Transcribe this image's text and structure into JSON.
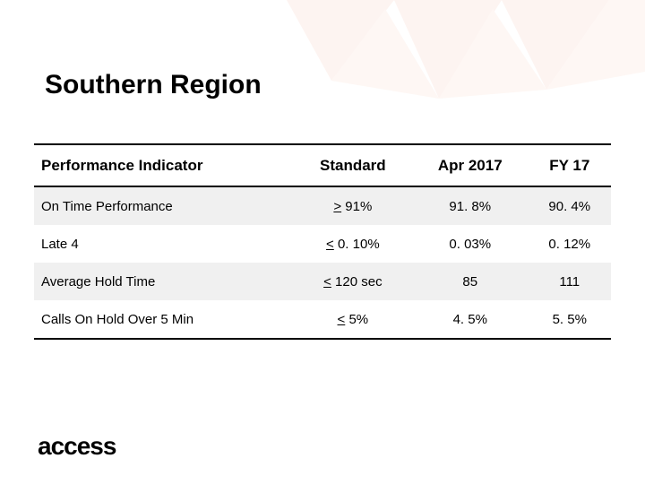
{
  "title": "Southern Region",
  "logo_text": "access",
  "background": {
    "triangle_color": "#f4a98f",
    "opacity": 0.12
  },
  "table": {
    "header_border_color": "#000000",
    "shade_color": "#f0f0f0",
    "columns": [
      "Performance Indicator",
      "Standard",
      "Apr 2017",
      "FY 17"
    ],
    "rows": [
      {
        "indicator": "On Time Performance",
        "standard_prefix": ">",
        "standard_rest": " 91%",
        "apr": "91. 8%",
        "fy": "90. 4%",
        "shaded": true
      },
      {
        "indicator": "Late 4",
        "standard_prefix": "<",
        "standard_rest": " 0. 10%",
        "apr": "0. 03%",
        "fy": "0. 12%",
        "shaded": false
      },
      {
        "indicator": "Average Hold Time",
        "standard_prefix": "<",
        "standard_rest": " 120 sec",
        "apr": "85",
        "fy": "111",
        "shaded": true
      },
      {
        "indicator": "Calls On Hold Over 5 Min",
        "standard_prefix": "<",
        "standard_rest": " 5%",
        "apr": "4. 5%",
        "fy": "5. 5%",
        "shaded": false
      }
    ]
  },
  "typography": {
    "title_fontsize": 30,
    "header_fontsize": 17,
    "cell_fontsize": 15,
    "logo_fontsize": 28
  }
}
